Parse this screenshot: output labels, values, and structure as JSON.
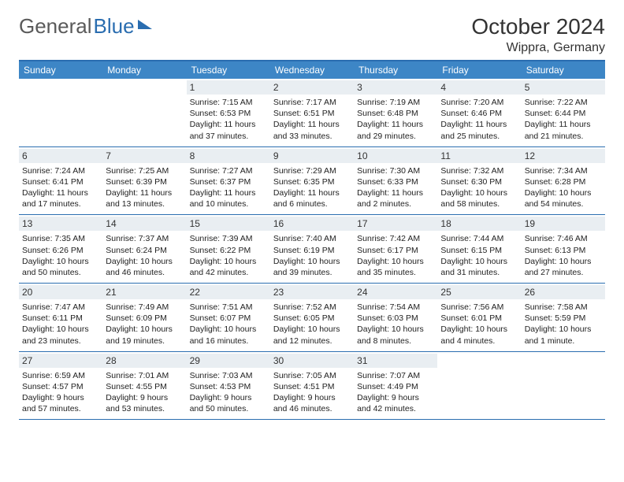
{
  "brand": {
    "part1": "General",
    "part2": "Blue"
  },
  "title": "October 2024",
  "location": "Wippra, Germany",
  "colors": {
    "header_bg": "#3d86c6",
    "rule": "#2a6db0",
    "daynum_bg": "#e9eef2",
    "text": "#222222"
  },
  "dow": [
    "Sunday",
    "Monday",
    "Tuesday",
    "Wednesday",
    "Thursday",
    "Friday",
    "Saturday"
  ],
  "weeks": [
    [
      {
        "n": "",
        "sr": "",
        "ss": "",
        "dl": ""
      },
      {
        "n": "",
        "sr": "",
        "ss": "",
        "dl": ""
      },
      {
        "n": "1",
        "sr": "Sunrise: 7:15 AM",
        "ss": "Sunset: 6:53 PM",
        "dl": "Daylight: 11 hours and 37 minutes."
      },
      {
        "n": "2",
        "sr": "Sunrise: 7:17 AM",
        "ss": "Sunset: 6:51 PM",
        "dl": "Daylight: 11 hours and 33 minutes."
      },
      {
        "n": "3",
        "sr": "Sunrise: 7:19 AM",
        "ss": "Sunset: 6:48 PM",
        "dl": "Daylight: 11 hours and 29 minutes."
      },
      {
        "n": "4",
        "sr": "Sunrise: 7:20 AM",
        "ss": "Sunset: 6:46 PM",
        "dl": "Daylight: 11 hours and 25 minutes."
      },
      {
        "n": "5",
        "sr": "Sunrise: 7:22 AM",
        "ss": "Sunset: 6:44 PM",
        "dl": "Daylight: 11 hours and 21 minutes."
      }
    ],
    [
      {
        "n": "6",
        "sr": "Sunrise: 7:24 AM",
        "ss": "Sunset: 6:41 PM",
        "dl": "Daylight: 11 hours and 17 minutes."
      },
      {
        "n": "7",
        "sr": "Sunrise: 7:25 AM",
        "ss": "Sunset: 6:39 PM",
        "dl": "Daylight: 11 hours and 13 minutes."
      },
      {
        "n": "8",
        "sr": "Sunrise: 7:27 AM",
        "ss": "Sunset: 6:37 PM",
        "dl": "Daylight: 11 hours and 10 minutes."
      },
      {
        "n": "9",
        "sr": "Sunrise: 7:29 AM",
        "ss": "Sunset: 6:35 PM",
        "dl": "Daylight: 11 hours and 6 minutes."
      },
      {
        "n": "10",
        "sr": "Sunrise: 7:30 AM",
        "ss": "Sunset: 6:33 PM",
        "dl": "Daylight: 11 hours and 2 minutes."
      },
      {
        "n": "11",
        "sr": "Sunrise: 7:32 AM",
        "ss": "Sunset: 6:30 PM",
        "dl": "Daylight: 10 hours and 58 minutes."
      },
      {
        "n": "12",
        "sr": "Sunrise: 7:34 AM",
        "ss": "Sunset: 6:28 PM",
        "dl": "Daylight: 10 hours and 54 minutes."
      }
    ],
    [
      {
        "n": "13",
        "sr": "Sunrise: 7:35 AM",
        "ss": "Sunset: 6:26 PM",
        "dl": "Daylight: 10 hours and 50 minutes."
      },
      {
        "n": "14",
        "sr": "Sunrise: 7:37 AM",
        "ss": "Sunset: 6:24 PM",
        "dl": "Daylight: 10 hours and 46 minutes."
      },
      {
        "n": "15",
        "sr": "Sunrise: 7:39 AM",
        "ss": "Sunset: 6:22 PM",
        "dl": "Daylight: 10 hours and 42 minutes."
      },
      {
        "n": "16",
        "sr": "Sunrise: 7:40 AM",
        "ss": "Sunset: 6:19 PM",
        "dl": "Daylight: 10 hours and 39 minutes."
      },
      {
        "n": "17",
        "sr": "Sunrise: 7:42 AM",
        "ss": "Sunset: 6:17 PM",
        "dl": "Daylight: 10 hours and 35 minutes."
      },
      {
        "n": "18",
        "sr": "Sunrise: 7:44 AM",
        "ss": "Sunset: 6:15 PM",
        "dl": "Daylight: 10 hours and 31 minutes."
      },
      {
        "n": "19",
        "sr": "Sunrise: 7:46 AM",
        "ss": "Sunset: 6:13 PM",
        "dl": "Daylight: 10 hours and 27 minutes."
      }
    ],
    [
      {
        "n": "20",
        "sr": "Sunrise: 7:47 AM",
        "ss": "Sunset: 6:11 PM",
        "dl": "Daylight: 10 hours and 23 minutes."
      },
      {
        "n": "21",
        "sr": "Sunrise: 7:49 AM",
        "ss": "Sunset: 6:09 PM",
        "dl": "Daylight: 10 hours and 19 minutes."
      },
      {
        "n": "22",
        "sr": "Sunrise: 7:51 AM",
        "ss": "Sunset: 6:07 PM",
        "dl": "Daylight: 10 hours and 16 minutes."
      },
      {
        "n": "23",
        "sr": "Sunrise: 7:52 AM",
        "ss": "Sunset: 6:05 PM",
        "dl": "Daylight: 10 hours and 12 minutes."
      },
      {
        "n": "24",
        "sr": "Sunrise: 7:54 AM",
        "ss": "Sunset: 6:03 PM",
        "dl": "Daylight: 10 hours and 8 minutes."
      },
      {
        "n": "25",
        "sr": "Sunrise: 7:56 AM",
        "ss": "Sunset: 6:01 PM",
        "dl": "Daylight: 10 hours and 4 minutes."
      },
      {
        "n": "26",
        "sr": "Sunrise: 7:58 AM",
        "ss": "Sunset: 5:59 PM",
        "dl": "Daylight: 10 hours and 1 minute."
      }
    ],
    [
      {
        "n": "27",
        "sr": "Sunrise: 6:59 AM",
        "ss": "Sunset: 4:57 PM",
        "dl": "Daylight: 9 hours and 57 minutes."
      },
      {
        "n": "28",
        "sr": "Sunrise: 7:01 AM",
        "ss": "Sunset: 4:55 PM",
        "dl": "Daylight: 9 hours and 53 minutes."
      },
      {
        "n": "29",
        "sr": "Sunrise: 7:03 AM",
        "ss": "Sunset: 4:53 PM",
        "dl": "Daylight: 9 hours and 50 minutes."
      },
      {
        "n": "30",
        "sr": "Sunrise: 7:05 AM",
        "ss": "Sunset: 4:51 PM",
        "dl": "Daylight: 9 hours and 46 minutes."
      },
      {
        "n": "31",
        "sr": "Sunrise: 7:07 AM",
        "ss": "Sunset: 4:49 PM",
        "dl": "Daylight: 9 hours and 42 minutes."
      },
      {
        "n": "",
        "sr": "",
        "ss": "",
        "dl": ""
      },
      {
        "n": "",
        "sr": "",
        "ss": "",
        "dl": ""
      }
    ]
  ]
}
